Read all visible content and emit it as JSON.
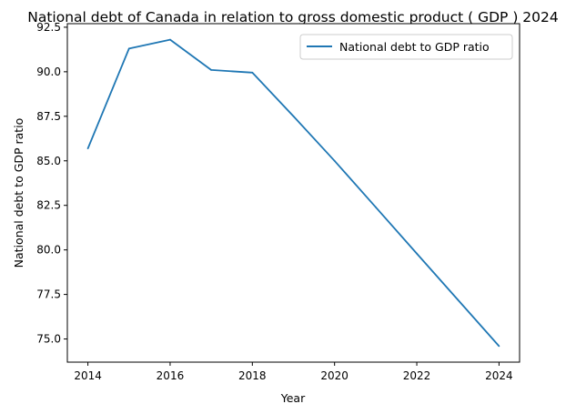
{
  "chart_data": {
    "type": "line",
    "title": "National debt of Canada in relation to gross domestic product ( GDP ) 2024",
    "xlabel": "Year",
    "ylabel": "National debt to GDP ratio",
    "x": [
      2014,
      2015,
      2016,
      2017,
      2018,
      2019,
      2020,
      2021,
      2022,
      2023,
      2024
    ],
    "series": [
      {
        "name": "National debt to GDP ratio",
        "color": "#1f77b4",
        "values": [
          85.7,
          91.3,
          91.8,
          90.1,
          89.95,
          87.5,
          85.0,
          82.4,
          79.8,
          77.2,
          74.6
        ]
      }
    ],
    "xlim": [
      2013.5,
      2024.5
    ],
    "ylim": [
      73.7,
      92.7
    ],
    "xticks": [
      2014,
      2016,
      2018,
      2020,
      2022,
      2024
    ],
    "yticks": [
      75.0,
      77.5,
      80.0,
      82.5,
      85.0,
      87.5,
      90.0,
      92.5
    ],
    "ytick_labels": [
      "75.0",
      "77.5",
      "80.0",
      "82.5",
      "85.0",
      "87.5",
      "90.0",
      "92.5"
    ],
    "grid": false,
    "legend_position": "top-right"
  }
}
